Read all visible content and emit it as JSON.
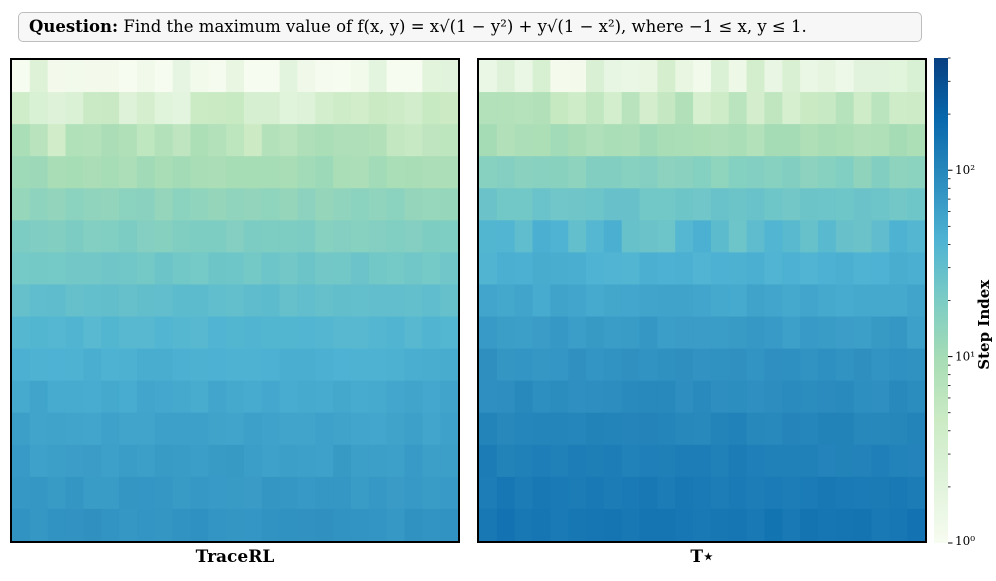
{
  "question": {
    "label": "Question:",
    "text": " Find the maximum value of f(x, y) = x√(1 − y²) + y√(1 − x²), where −1 ≤ x, y ≤ 1."
  },
  "colors": {
    "cmap": [
      "#f7fcf0",
      "#e0f3db",
      "#ccebc5",
      "#a8ddb5",
      "#7bccc4",
      "#4eb3d3",
      "#2b8cbe",
      "#0868ac",
      "#084081"
    ]
  },
  "chart_data": [
    {
      "type": "heatmap",
      "xlabel": "TraceRL",
      "rows": 15,
      "cols": 25,
      "row_step_index": [
        1.2,
        3,
        6,
        10,
        14,
        18,
        24,
        31,
        38,
        45,
        52,
        58,
        64,
        70,
        76
      ],
      "row_variation": [
        0.45,
        0.35,
        0.3,
        0.1,
        0.08,
        0.07,
        0.06,
        0.06,
        0.05,
        0.05,
        0.05,
        0.05,
        0.05,
        0.05,
        0.05
      ],
      "colorbar_scale": "log",
      "colorbar_range": [
        1,
        400
      ]
    },
    {
      "type": "heatmap",
      "xlabel": "T⋆",
      "rows": 15,
      "cols": 25,
      "row_step_index": [
        2,
        5,
        9,
        16,
        25,
        34,
        44,
        54,
        66,
        78,
        90,
        102,
        115,
        128,
        140
      ],
      "row_variation": [
        0.45,
        0.3,
        0.12,
        0.08,
        0.07,
        0.2,
        0.07,
        0.06,
        0.06,
        0.05,
        0.05,
        0.05,
        0.05,
        0.05,
        0.05
      ],
      "colorbar_scale": "log",
      "colorbar_range": [
        1,
        400
      ]
    }
  ],
  "colorbar": {
    "title": "Step Index",
    "ticks": [
      {
        "value": 1,
        "label": "10⁰"
      },
      {
        "value": 10,
        "label": "10¹"
      },
      {
        "value": 100,
        "label": "10²"
      }
    ],
    "minor_ticks": [
      2,
      3,
      4,
      5,
      6,
      7,
      8,
      9,
      20,
      30,
      40,
      50,
      60,
      70,
      80,
      90,
      200,
      300,
      400
    ],
    "min": 1,
    "max": 400
  }
}
